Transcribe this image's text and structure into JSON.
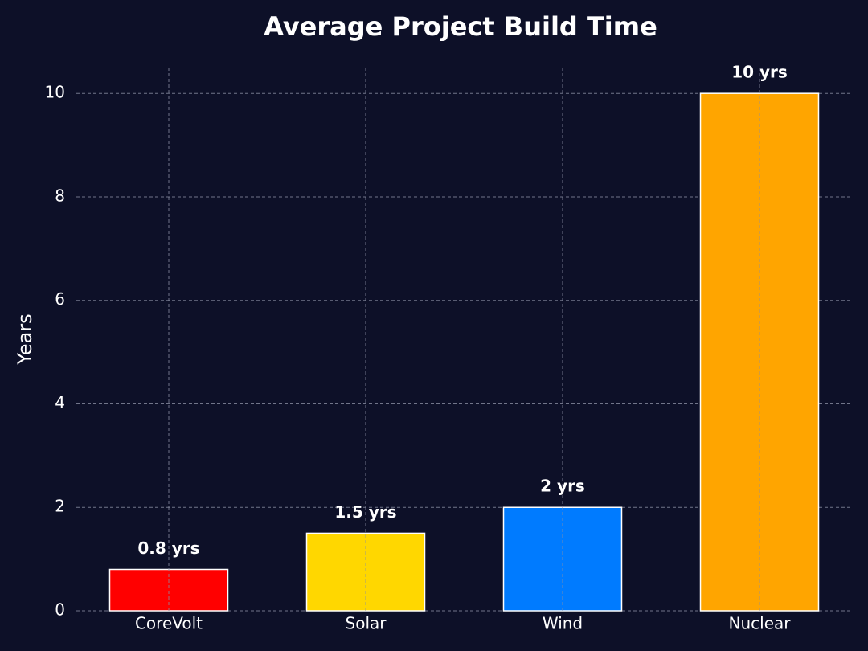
{
  "chart_data": {
    "type": "bar",
    "title": "Average Project Build Time",
    "ylabel": "Years",
    "categories": [
      "CoreVolt",
      "Solar",
      "Wind",
      "Nuclear"
    ],
    "values": [
      0.8,
      1.5,
      2,
      10
    ],
    "value_labels": [
      "0.8 yrs",
      "1.5 yrs",
      "2 yrs",
      "10 yrs"
    ],
    "colors": [
      "#ff0000",
      "#ffd700",
      "#007bff",
      "#ffa500"
    ],
    "ylim": [
      0,
      10.5
    ],
    "yticks": [
      0,
      2,
      4,
      6,
      8,
      10
    ],
    "grid": true
  }
}
